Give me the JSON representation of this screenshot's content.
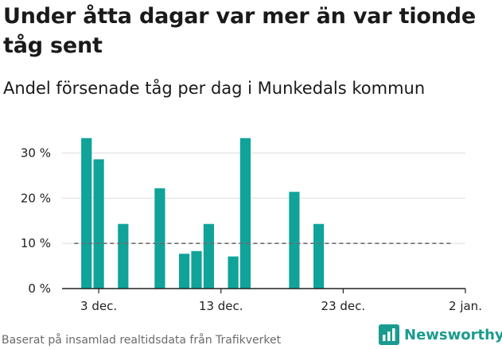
{
  "title": "Under åtta dagar var mer än var tionde tåg sent",
  "subtitle": "Andel försenade tåg per dag i Munkedals kommun",
  "footer": "Baserat på insamlad realtidsdata från Trafikverket",
  "brand": {
    "name": "Newsworthy",
    "icon": "newsworthy-logo-icon"
  },
  "colors": {
    "bar": "#0fa39a",
    "reference_line": "#6e6e6e",
    "grid": "#dddddd",
    "brand": "#1a9b8f"
  },
  "chart_data": {
    "type": "bar",
    "x_axis": "date",
    "y_unit": "%",
    "ylim": [
      0,
      35
    ],
    "yticks": [
      0,
      10,
      20,
      30
    ],
    "ytick_labels": [
      "0 %",
      "10 %",
      "20 %",
      "30 %"
    ],
    "xticks": [
      "2023-12-03",
      "2023-12-13",
      "2023-12-23",
      "2024-01-02"
    ],
    "xtick_labels": [
      "3 dec.",
      "13 dec.",
      "23 dec.",
      "2 jan."
    ],
    "xlim": [
      "2023-11-30",
      "2024-01-02"
    ],
    "grid": true,
    "reference_line": {
      "value": 10,
      "style": "dashed",
      "from": "2023-12-01",
      "to": "2024-01-01"
    },
    "series": [
      {
        "dates": [
          "2023-12-02",
          "2023-12-03",
          "2023-12-05",
          "2023-12-08",
          "2023-12-10",
          "2023-12-11",
          "2023-12-12",
          "2023-12-14",
          "2023-12-15",
          "2023-12-19",
          "2023-12-21"
        ],
        "values": [
          33.3,
          28.6,
          14.3,
          22.2,
          7.7,
          8.3,
          14.3,
          7.1,
          33.3,
          21.4,
          14.3
        ]
      }
    ]
  }
}
